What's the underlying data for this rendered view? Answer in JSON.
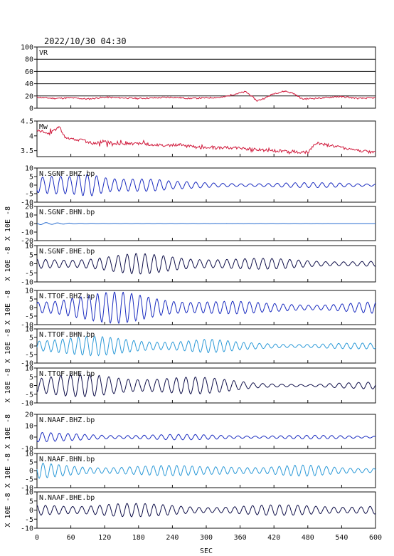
{
  "header": "2022/10/30 04:30",
  "xlabel": "SEC",
  "chart_data": {
    "type": "line",
    "xlim": [
      0,
      600
    ],
    "xticks": [
      0,
      60,
      120,
      180,
      240,
      300,
      360,
      420,
      480,
      540,
      600
    ],
    "panels": [
      {
        "label": "VR",
        "ylabel": "",
        "ylim": [
          0,
          100
        ],
        "yticks": [
          0,
          20,
          40,
          60,
          80,
          100
        ],
        "grid_y": [
          20,
          40,
          60,
          80
        ],
        "color": "#d01a3c",
        "kind": "vr",
        "points": [
          [
            0,
            18
          ],
          [
            30,
            16
          ],
          [
            60,
            17
          ],
          [
            90,
            15
          ],
          [
            120,
            18
          ],
          [
            150,
            17
          ],
          [
            180,
            16
          ],
          [
            210,
            17
          ],
          [
            240,
            18
          ],
          [
            270,
            16
          ],
          [
            300,
            17
          ],
          [
            330,
            18
          ],
          [
            350,
            23
          ],
          [
            370,
            27
          ],
          [
            380,
            20
          ],
          [
            390,
            12
          ],
          [
            405,
            17
          ],
          [
            420,
            24
          ],
          [
            440,
            28
          ],
          [
            455,
            24
          ],
          [
            470,
            15
          ],
          [
            490,
            16
          ],
          [
            510,
            17
          ],
          [
            530,
            19
          ],
          [
            550,
            18
          ],
          [
            570,
            16
          ],
          [
            600,
            17
          ]
        ]
      },
      {
        "label": "Mw",
        "ylabel": "",
        "ylim": [
          3.3,
          4.5
        ],
        "yticks": [
          3.5,
          4.0,
          4.5
        ],
        "grid_y": [],
        "color": "#d01a3c",
        "kind": "mw",
        "points": [
          [
            0,
            4.2
          ],
          [
            20,
            4.05
          ],
          [
            40,
            4.3
          ],
          [
            50,
            3.95
          ],
          [
            60,
            3.9
          ],
          [
            80,
            3.85
          ],
          [
            100,
            3.75
          ],
          [
            120,
            3.8
          ],
          [
            150,
            3.72
          ],
          [
            180,
            3.75
          ],
          [
            220,
            3.68
          ],
          [
            250,
            3.7
          ],
          [
            280,
            3.62
          ],
          [
            300,
            3.6
          ],
          [
            340,
            3.6
          ],
          [
            380,
            3.55
          ],
          [
            420,
            3.5
          ],
          [
            440,
            3.48
          ],
          [
            480,
            3.45
          ],
          [
            495,
            3.75
          ],
          [
            510,
            3.7
          ],
          [
            540,
            3.6
          ],
          [
            570,
            3.5
          ],
          [
            600,
            3.45
          ]
        ]
      },
      {
        "label": "N.SGNF.BHZ.bp",
        "ylabel": "",
        "ylim": [
          -10,
          10
        ],
        "yticks": [
          -10,
          -5,
          0,
          5,
          10
        ],
        "grid_y": [],
        "color": "#1a2cc0",
        "kind": "wave",
        "wave": {
          "env": [
            [
              0,
              4
            ],
            [
              60,
              5
            ],
            [
              95,
              9
            ],
            [
              130,
              7
            ],
            [
              180,
              5
            ],
            [
              240,
              2
            ],
            [
              300,
              1.5
            ],
            [
              420,
              1.3
            ],
            [
              520,
              1.3
            ],
            [
              600,
              1.1
            ]
          ],
          "period": 16,
          "seed": 1
        }
      },
      {
        "label": "N.SGNF.BHN.bp",
        "ylabel": "X 10E -8",
        "ylim": [
          -20,
          20
        ],
        "yticks": [
          -20,
          -10,
          0,
          10,
          20
        ],
        "grid_y": [],
        "color": "#2a6ed0",
        "kind": "wave",
        "wave": {
          "env": [
            [
              0,
              1.2
            ],
            [
              60,
              0.6
            ],
            [
              120,
              0.1
            ],
            [
              600,
              0.05
            ]
          ],
          "period": 20,
          "seed": 2
        }
      },
      {
        "label": "N.SGNF.BHE.bp",
        "ylabel": "X 10E -8",
        "ylim": [
          -10,
          10
        ],
        "yticks": [
          -10,
          -5,
          0,
          5,
          10
        ],
        "grid_y": [],
        "color": "#10104a",
        "kind": "wave",
        "wave": {
          "env": [
            [
              0,
              3
            ],
            [
              100,
              4
            ],
            [
              180,
              5
            ],
            [
              300,
              4
            ],
            [
              360,
              3
            ],
            [
              420,
              2.5
            ],
            [
              520,
              2
            ],
            [
              600,
              1.5
            ]
          ],
          "period": 16,
          "seed": 3
        }
      },
      {
        "label": "N.TTOF.BHZ.bp",
        "ylabel": "X 10E -8",
        "ylim": [
          -10,
          10
        ],
        "yticks": [
          -10,
          -5,
          0,
          5,
          10
        ],
        "grid_y": [],
        "color": "#1a2cc0",
        "kind": "wave",
        "wave": {
          "env": [
            [
              0,
              5
            ],
            [
              60,
              8
            ],
            [
              150,
              8
            ],
            [
              250,
              6
            ],
            [
              320,
              4
            ],
            [
              400,
              2.5
            ],
            [
              500,
              2.5
            ],
            [
              600,
              3
            ]
          ],
          "period": 15,
          "seed": 4
        }
      },
      {
        "label": "N.TTOF.BHN.bp",
        "ylabel": "X 10E -8",
        "ylim": [
          -10,
          10
        ],
        "yticks": [
          -10,
          -5,
          0,
          5,
          10
        ],
        "grid_y": [],
        "color": "#2c9ad8",
        "kind": "wave",
        "wave": {
          "env": [
            [
              0,
              5
            ],
            [
              100,
              5
            ],
            [
              180,
              4
            ],
            [
              300,
              4
            ],
            [
              360,
              2
            ],
            [
              480,
              1.5
            ],
            [
              600,
              1.5
            ]
          ],
          "period": 14,
          "seed": 5
        }
      },
      {
        "label": "N.TTOF.BHE.bp",
        "ylabel": "X 10E -8",
        "ylim": [
          -10,
          10
        ],
        "yticks": [
          -10,
          -5,
          0,
          5,
          10
        ],
        "grid_y": [],
        "color": "#10104a",
        "kind": "wave",
        "wave": {
          "env": [
            [
              0,
              5
            ],
            [
              120,
              6
            ],
            [
              200,
              6
            ],
            [
              300,
              4
            ],
            [
              400,
              2
            ],
            [
              480,
              0.5
            ],
            [
              560,
              1.5
            ],
            [
              600,
              2.5
            ]
          ],
          "period": 17,
          "seed": 6
        }
      },
      {
        "label": "N.NAAF.BHZ.bp",
        "ylabel": "X 10E -8",
        "ylim": [
          -10,
          20
        ],
        "yticks": [
          -10,
          0,
          10,
          20
        ],
        "grid_y": [],
        "color": "#1a2cc0",
        "kind": "wave",
        "wave": {
          "env": [
            [
              0,
              4
            ],
            [
              40,
              3
            ],
            [
              120,
              2.5
            ],
            [
              300,
              2
            ],
            [
              450,
              1.5
            ],
            [
              600,
              1.2
            ]
          ],
          "period": 15,
          "seed": 7
        }
      },
      {
        "label": "N.NAAF.BHN.bp",
        "ylabel": "X 10E -8",
        "ylim": [
          -10,
          10
        ],
        "yticks": [
          -10,
          -5,
          0,
          5,
          10
        ],
        "grid_y": [],
        "color": "#2c9ad8",
        "kind": "wave",
        "wave": {
          "env": [
            [
              0,
              4
            ],
            [
              100,
              3
            ],
            [
              200,
              2.5
            ],
            [
              300,
              3
            ],
            [
              330,
              4
            ],
            [
              400,
              2
            ],
            [
              480,
              3
            ],
            [
              600,
              2
            ]
          ],
          "period": 14,
          "seed": 8
        }
      },
      {
        "label": "N.NAAF.BHE.bp",
        "ylabel": "X 10E -8",
        "ylim": [
          -10,
          10
        ],
        "yticks": [
          -10,
          -5,
          0,
          5,
          10
        ],
        "grid_y": [],
        "color": "#10104a",
        "kind": "wave",
        "wave": {
          "env": [
            [
              0,
              3
            ],
            [
              120,
              4
            ],
            [
              200,
              3
            ],
            [
              300,
              2.5
            ],
            [
              420,
              2.5
            ],
            [
              520,
              3
            ],
            [
              600,
              2.5
            ]
          ],
          "period": 16,
          "seed": 9
        }
      }
    ]
  }
}
